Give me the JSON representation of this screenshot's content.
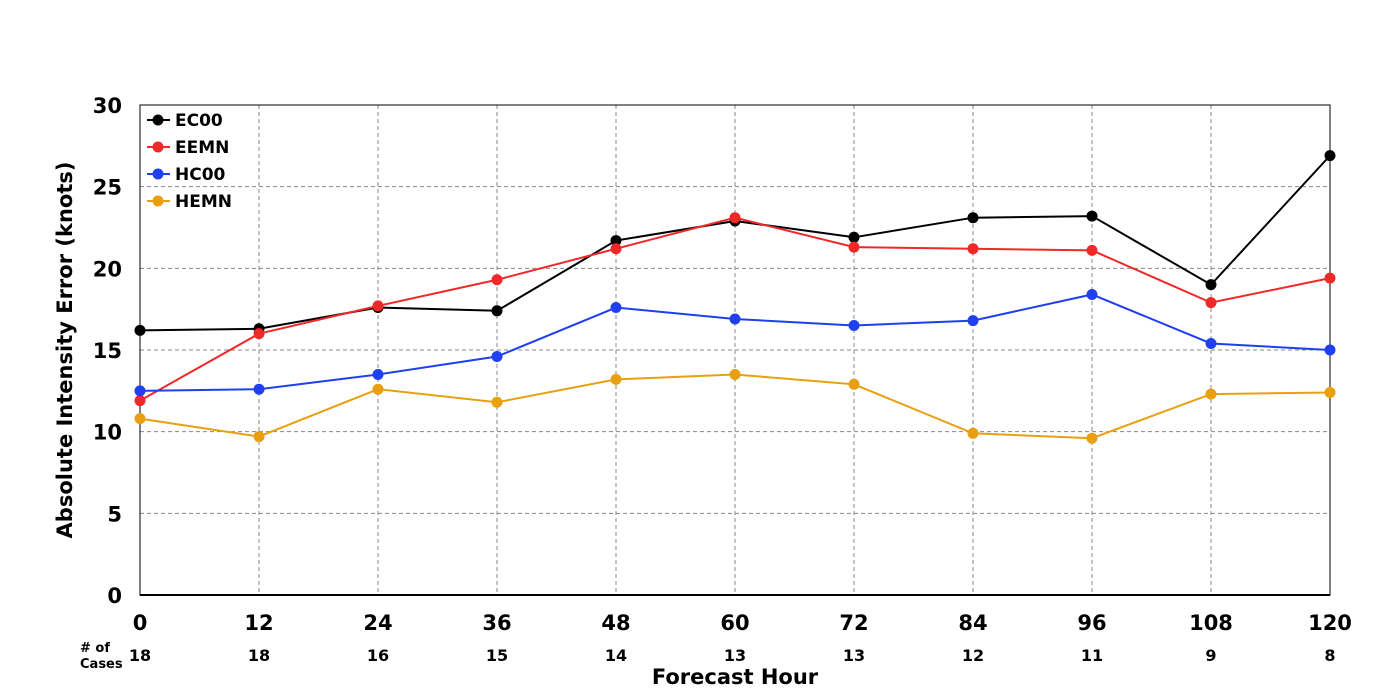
{
  "chart_data": {
    "type": "line",
    "title": "",
    "xlabel": "Forecast Hour",
    "ylabel": "Absolute Intensity Error (knots)",
    "ylim": [
      0,
      30
    ],
    "xlim": [
      0,
      120
    ],
    "yticks": [
      0,
      5,
      10,
      15,
      20,
      25,
      30
    ],
    "x": [
      0,
      12,
      24,
      36,
      48,
      60,
      72,
      84,
      96,
      108,
      120
    ],
    "cases_label_line1": "# of",
    "cases_label_line2": "Cases",
    "cases": [
      18,
      18,
      16,
      15,
      14,
      13,
      13,
      12,
      11,
      9,
      8
    ],
    "grid": true,
    "legend_position": "top-left",
    "series": [
      {
        "name": "EC00",
        "color": "#000000",
        "values": [
          16.2,
          16.3,
          17.6,
          17.4,
          21.7,
          22.9,
          21.9,
          23.1,
          23.2,
          19.0,
          26.9
        ]
      },
      {
        "name": "EEMN",
        "color": "#f02828",
        "values": [
          11.9,
          16.0,
          17.7,
          19.3,
          21.2,
          23.1,
          21.3,
          21.2,
          21.1,
          17.9,
          19.4
        ]
      },
      {
        "name": "HC00",
        "color": "#2040f0",
        "values": [
          12.5,
          12.6,
          13.5,
          14.6,
          17.6,
          16.9,
          16.5,
          16.8,
          18.4,
          15.4,
          15.0
        ]
      },
      {
        "name": "HEMN",
        "color": "#e8a010",
        "values": [
          10.8,
          9.7,
          12.6,
          11.8,
          13.2,
          13.5,
          12.9,
          9.9,
          9.6,
          12.3,
          12.4
        ]
      }
    ]
  }
}
